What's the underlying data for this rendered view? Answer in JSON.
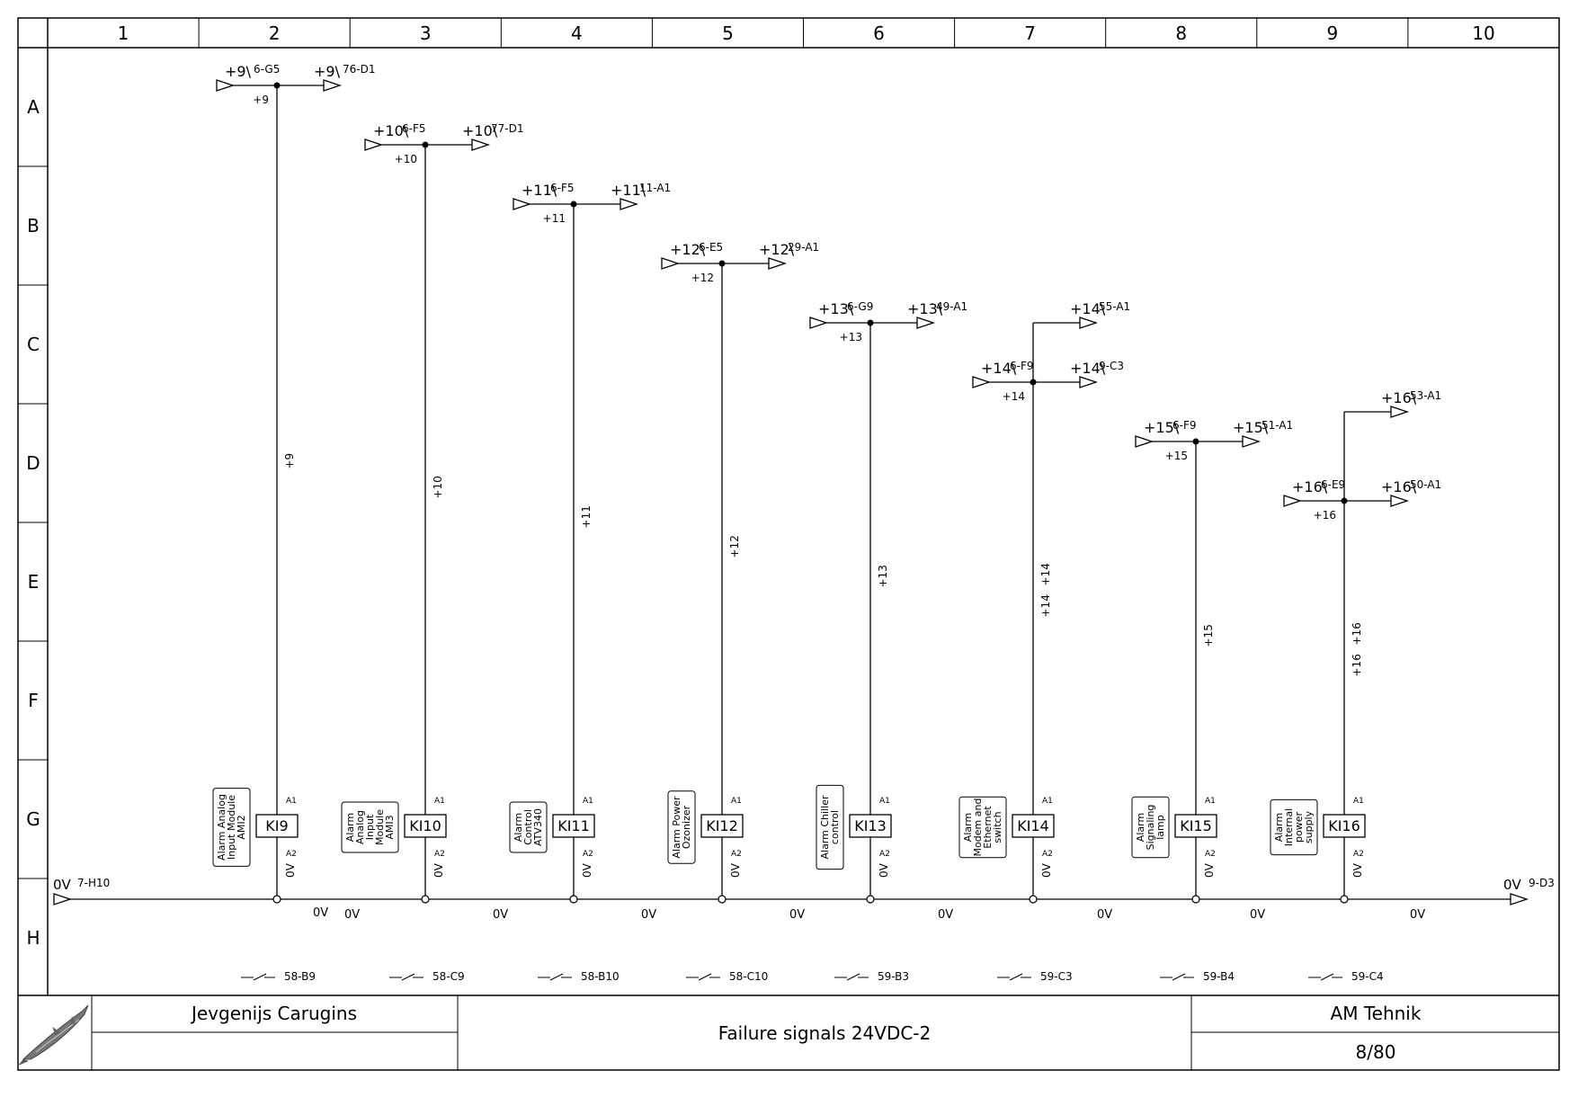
{
  "sheet": {
    "columns": [
      "1",
      "2",
      "3",
      "4",
      "5",
      "6",
      "7",
      "8",
      "9",
      "10"
    ],
    "rows": [
      "A",
      "B",
      "C",
      "D",
      "E",
      "F",
      "G",
      "H"
    ]
  },
  "title_block": {
    "author": "Jevgenijs Carugins",
    "title": "Failure signals 24VDC-2",
    "company": "AM Tehnik",
    "page": "8/80",
    "logo_icon": "sturgeon-fish-logo"
  },
  "zero_volt_rail": {
    "label_left": "0V",
    "ref_left": "7-H10",
    "label_right": "0V",
    "ref_right": "9-D3",
    "segment_label": "0V",
    "segment_label_first": "0V"
  },
  "extra_outputs": [
    {
      "potential": "+14",
      "ref": "55-A1"
    },
    {
      "potential": "+16",
      "ref": "53-A1"
    }
  ],
  "relays": [
    {
      "tag": "KI9",
      "potential": "+9",
      "ref_in": "6-G5",
      "ref_out": "76-D1",
      "description": "Alarm Analog Input Module AMI2",
      "desc_lines": [
        "Alarm Analog",
        "Input Module",
        "AMI2"
      ],
      "wire_label": "+9",
      "node_label": "+9",
      "coil_a1": "A1",
      "coil_a2": "A2",
      "a2_net": "0V",
      "contact_ref": "58-B9"
    },
    {
      "tag": "KI10",
      "potential": "+10",
      "ref_in": "6-F5",
      "ref_out": "77-D1",
      "description": "Alarm Analog Input Module AMI3",
      "desc_lines": [
        "Alarm",
        "Analog",
        "Input",
        "Module",
        "AMI3"
      ],
      "wire_label": "+10",
      "node_label": "+10",
      "coil_a1": "A1",
      "coil_a2": "A2",
      "a2_net": "0V",
      "contact_ref": "58-C9"
    },
    {
      "tag": "KI11",
      "potential": "+11",
      "ref_in": "6-F5",
      "ref_out": "11-A1",
      "description": "Alarm Control ATV340",
      "desc_lines": [
        "Alarm",
        "Control",
        "ATV340"
      ],
      "wire_label": "+11",
      "node_label": "+11",
      "coil_a1": "A1",
      "coil_a2": "A2",
      "a2_net": "0V",
      "contact_ref": "58-B10"
    },
    {
      "tag": "KI12",
      "potential": "+12",
      "ref_in": "6-E5",
      "ref_out": "29-A1",
      "description": "Alarm Power Ozonizer",
      "desc_lines": [
        "Alarm Power",
        "Ozonizer"
      ],
      "wire_label": "+12",
      "node_label": "+12",
      "coil_a1": "A1",
      "coil_a2": "A2",
      "a2_net": "0V",
      "contact_ref": "58-C10"
    },
    {
      "tag": "KI13",
      "potential": "+13",
      "ref_in": "6-G9",
      "ref_out": "49-A1",
      "description": "Alarm Chiller control",
      "desc_lines": [
        "Alarm Chiller",
        "control"
      ],
      "wire_label": "+13",
      "node_label": "+13",
      "coil_a1": "A1",
      "coil_a2": "A2",
      "a2_net": "0V",
      "contact_ref": "59-B3"
    },
    {
      "tag": "KI14",
      "potential": "+14",
      "ref_in": "6-F9",
      "ref_out": "9-C3",
      "description": "Alarm Modem and Ethernet switch",
      "desc_lines": [
        "Alarm",
        "Modem and",
        "Ethernet",
        "switch"
      ],
      "wire_label": "+14",
      "wire_label_2": "+14",
      "node_label": "+14",
      "coil_a1": "A1",
      "coil_a2": "A2",
      "a2_net": "0V",
      "contact_ref": "59-C3"
    },
    {
      "tag": "KI15",
      "potential": "+15",
      "ref_in": "6-F9",
      "ref_out": "51-A1",
      "description": "Alarm Signaling lamp",
      "desc_lines": [
        "Alarm",
        "Signaling",
        "lamp"
      ],
      "wire_label": "+15",
      "node_label": "+15",
      "coil_a1": "A1",
      "coil_a2": "A2",
      "a2_net": "0V",
      "contact_ref": "59-B4"
    },
    {
      "tag": "KI16",
      "potential": "+16",
      "ref_in": "6-E9",
      "ref_out": "50-A1",
      "description": "Alarm Internal power supply",
      "desc_lines": [
        "Alarm",
        "Internal",
        "power",
        "supply"
      ],
      "wire_label": "+16",
      "wire_label_2": "+16",
      "node_label": "+16",
      "coil_a1": "A1",
      "coil_a2": "A2",
      "a2_net": "0V",
      "contact_ref": "59-C4"
    }
  ]
}
